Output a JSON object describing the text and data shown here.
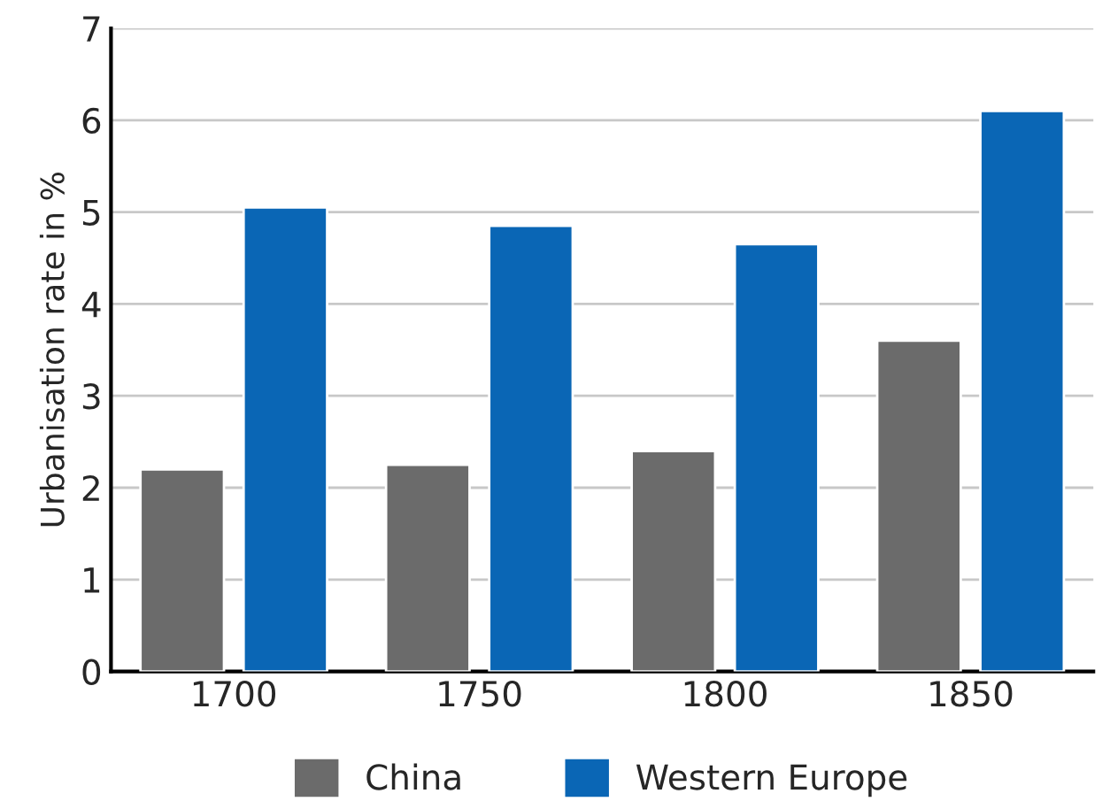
{
  "chart_data": {
    "type": "bar",
    "ylabel": "Urbanisation rate in %",
    "categories": [
      "1700",
      "1750",
      "1800",
      "1850"
    ],
    "series": [
      {
        "name": "China",
        "color": "#6b6b6b",
        "values": [
          2.2,
          2.25,
          2.4,
          3.6
        ]
      },
      {
        "name": "Western Europe",
        "color": "#0a66b5",
        "values": [
          5.05,
          4.85,
          4.65,
          6.1
        ]
      }
    ],
    "ylim": [
      0,
      7
    ],
    "yticks": [
      0,
      1,
      2,
      3,
      4,
      5,
      6,
      7
    ],
    "grid": "y",
    "legend": "bottom"
  }
}
